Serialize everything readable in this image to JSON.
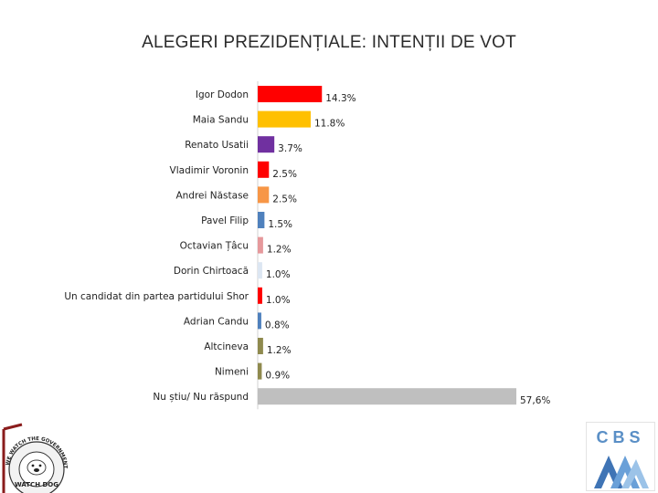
{
  "chart_data": {
    "type": "bar",
    "orientation": "horizontal",
    "title": "ALEGERI PREZIDENȚIALE: INTENȚII DE VOT",
    "xlabel": "",
    "ylabel": "",
    "xlim": [
      0,
      60
    ],
    "grid": false,
    "categories": [
      "Igor Dodon",
      "Maia Sandu",
      "Renato Usatii",
      "Vladimir Voronin",
      "Andrei Năstase",
      "Pavel Filip",
      "Octavian Țâcu",
      "Dorin Chirtoacă",
      "Un candidat din partea partidului Shor",
      "Adrian Candu",
      "Altcineva",
      "Nimeni",
      "Nu știu/ Nu răspund"
    ],
    "values": [
      14.3,
      11.8,
      3.7,
      2.5,
      2.5,
      1.5,
      1.2,
      1.0,
      1.0,
      0.8,
      1.2,
      0.9,
      57.6
    ],
    "value_labels": [
      "14.3%",
      "11.8%",
      "3.7%",
      "2.5%",
      "2.5%",
      "1.5%",
      "1.2%",
      "1.0%",
      "1.0%",
      "0.8%",
      "1.2%",
      "0.9%",
      "57,6%"
    ],
    "colors": [
      "#ff0000",
      "#ffc000",
      "#7030a0",
      "#ff0000",
      "#f79646",
      "#4f81bd",
      "#e6999c",
      "#dce6f2",
      "#ff0000",
      "#4f81bd",
      "#8f8a4e",
      "#8f8a4e",
      "#bfbfbf"
    ]
  },
  "logos": {
    "left": {
      "text_top": "WE WATCH THE GOVERNMENT FOR YOU",
      "text_bottom": "WATCH DOG"
    },
    "right": {
      "text": "CBS"
    }
  }
}
